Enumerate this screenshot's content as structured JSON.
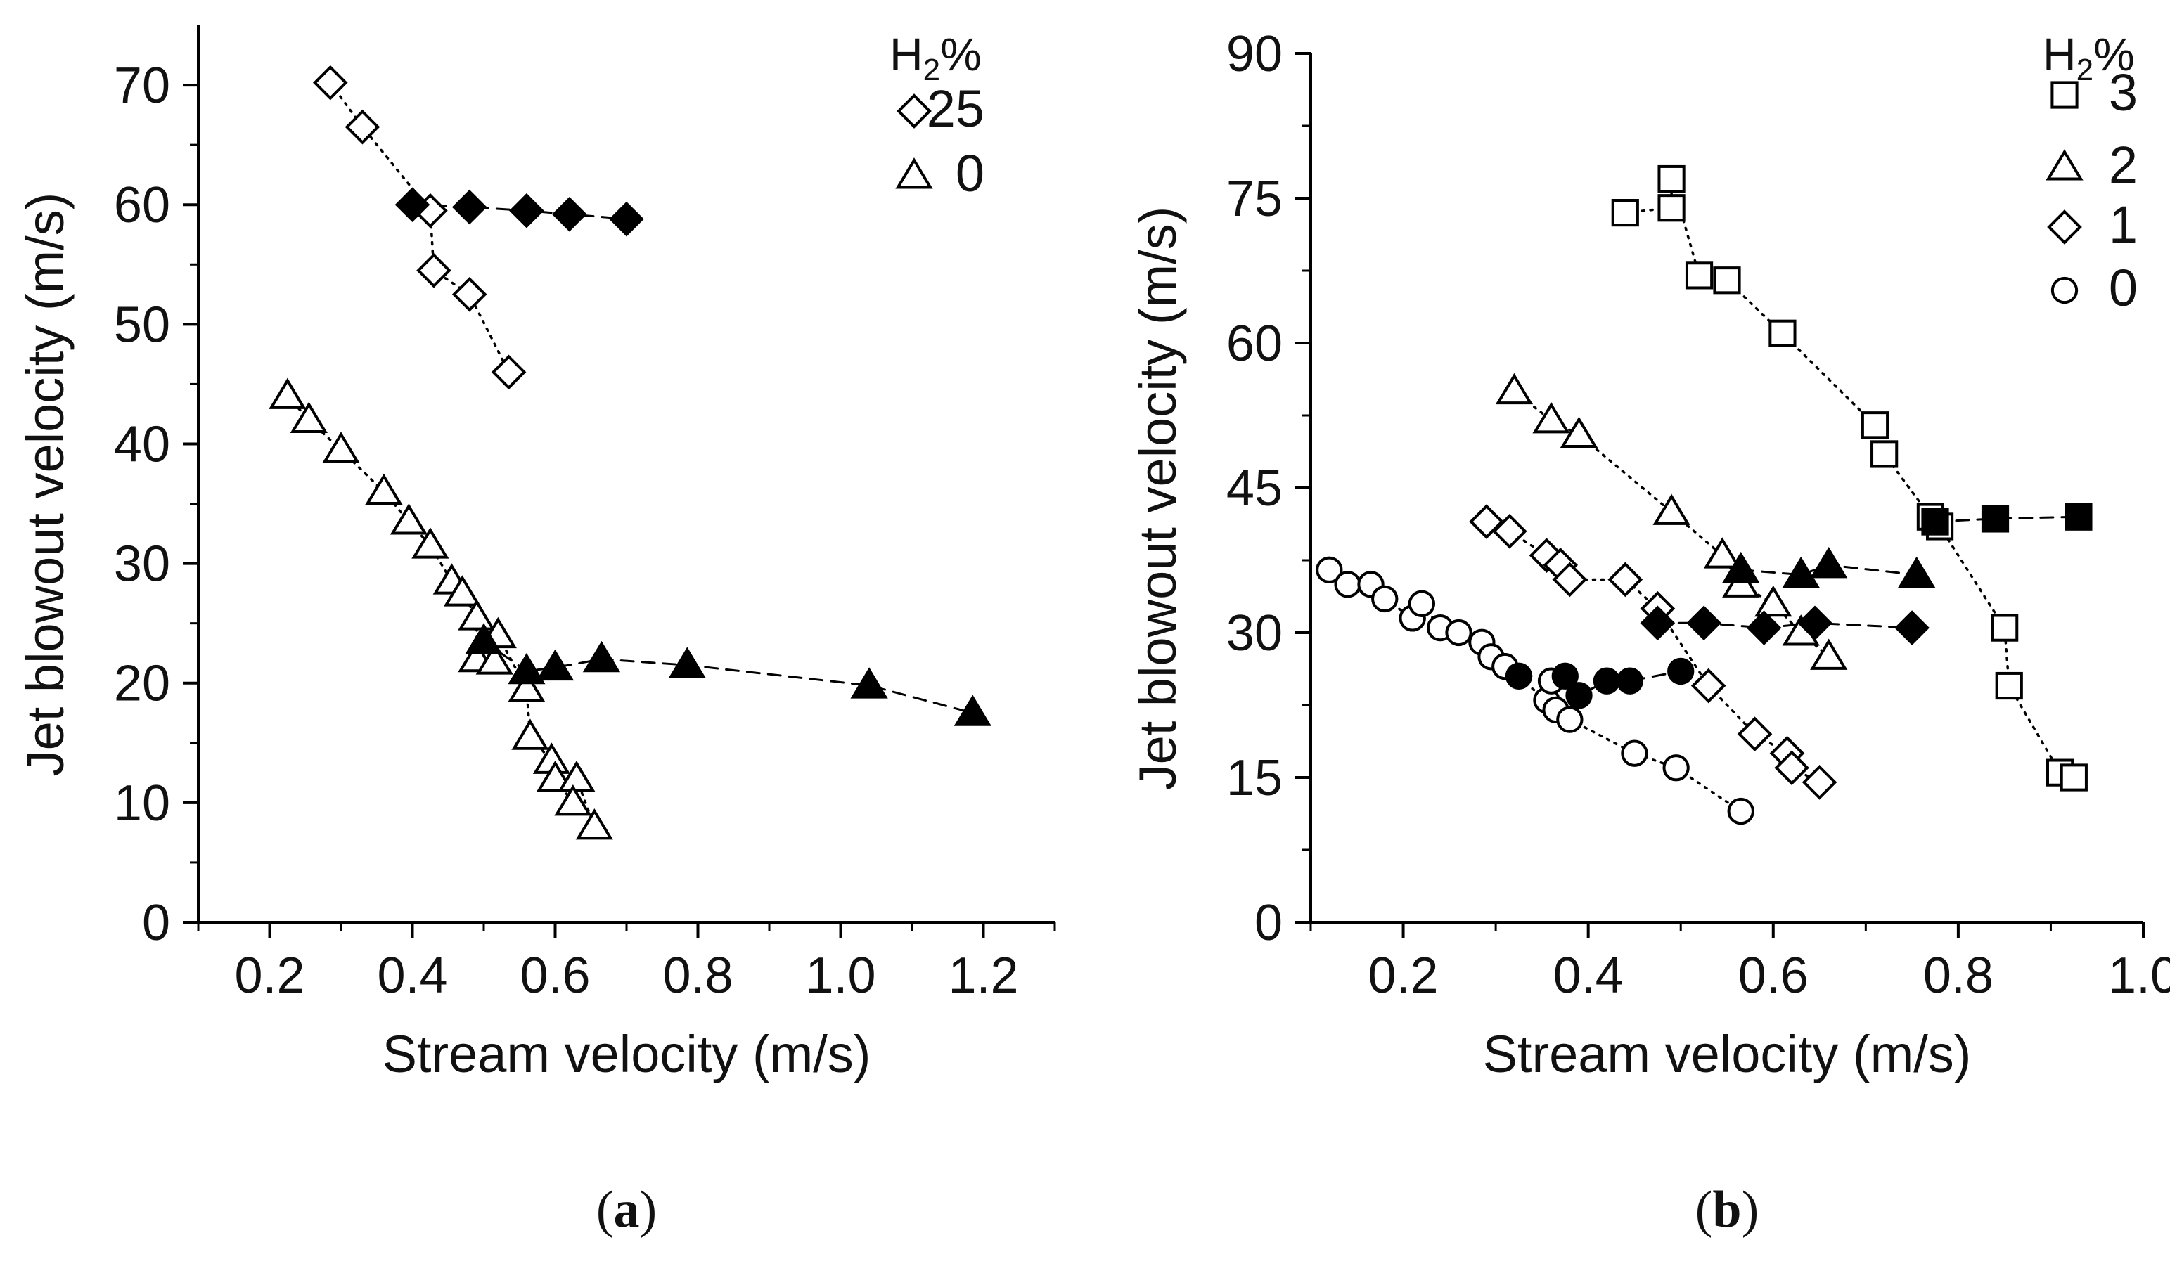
{
  "chart_data": [
    {
      "type": "scatter",
      "panel_label": "(a)",
      "panel_letter": "a",
      "xlabel": "Stream velocity (m/s)",
      "ylabel": "Jet blowout velocity (m/s)",
      "xlim": [
        0.1,
        1.3
      ],
      "ylim": [
        0,
        75
      ],
      "xticks": [
        "0.2",
        "0.4",
        "0.6",
        "0.8",
        "1.0",
        "1.2"
      ],
      "yticks": [
        "0",
        "10",
        "20",
        "30",
        "40",
        "50",
        "60",
        "70"
      ],
      "legend": {
        "title": "H2%",
        "title_main": "H",
        "title_sub": "2",
        "title_suffix": "%",
        "position": "top-right",
        "entries": [
          {
            "label": "25",
            "marker": "diamond"
          },
          {
            "label": "0",
            "marker": "triangle"
          }
        ]
      },
      "series": [
        {
          "label": "25",
          "marker": "diamond",
          "filled": false,
          "line": "dotted",
          "points": [
            [
              0.285,
              70.2
            ],
            [
              0.33,
              66.5
            ],
            [
              0.425,
              59.5
            ],
            [
              0.43,
              54.5
            ],
            [
              0.48,
              52.5
            ],
            [
              0.535,
              46.0
            ]
          ]
        },
        {
          "label": "25",
          "marker": "diamond",
          "filled": true,
          "line": "dashed",
          "points": [
            [
              0.4,
              60.0
            ],
            [
              0.48,
              59.8
            ],
            [
              0.56,
              59.5
            ],
            [
              0.62,
              59.2
            ],
            [
              0.7,
              58.8
            ]
          ]
        },
        {
          "label": "0",
          "marker": "triangle",
          "filled": false,
          "line": "dotted",
          "points": [
            [
              0.225,
              44.0
            ],
            [
              0.255,
              42.0
            ],
            [
              0.3,
              39.5
            ],
            [
              0.36,
              36.0
            ],
            [
              0.395,
              33.5
            ],
            [
              0.425,
              31.5
            ],
            [
              0.455,
              28.5
            ],
            [
              0.47,
              27.5
            ],
            [
              0.49,
              25.5
            ],
            [
              0.52,
              24.0
            ],
            [
              0.49,
              22.0
            ],
            [
              0.515,
              21.8
            ],
            [
              0.56,
              19.5
            ],
            [
              0.565,
              15.5
            ],
            [
              0.595,
              13.5
            ],
            [
              0.6,
              12.0
            ],
            [
              0.63,
              12.0
            ],
            [
              0.625,
              10.0
            ],
            [
              0.655,
              8.0
            ]
          ]
        },
        {
          "label": "0",
          "marker": "triangle",
          "filled": true,
          "line": "dashed",
          "points": [
            [
              0.5,
              23.5
            ],
            [
              0.56,
              21.0
            ],
            [
              0.6,
              21.3
            ],
            [
              0.665,
              22.0
            ],
            [
              0.785,
              21.5
            ],
            [
              1.04,
              19.8
            ],
            [
              1.185,
              17.5
            ]
          ]
        }
      ]
    },
    {
      "type": "scatter",
      "panel_label": "(b)",
      "panel_letter": "b",
      "xlabel": "Stream velocity (m/s)",
      "ylabel": "Jet blowout velocity (m/s)",
      "xlim": [
        0.1,
        1.0
      ],
      "ylim": [
        0,
        90
      ],
      "xticks": [
        "0.2",
        "0.4",
        "0.6",
        "0.8",
        "1.0"
      ],
      "yticks": [
        "0",
        "15",
        "30",
        "45",
        "60",
        "75",
        "90"
      ],
      "legend": {
        "title": "H2%",
        "title_main": "H",
        "title_sub": "2",
        "title_suffix": "%",
        "position": "top-right",
        "entries": [
          {
            "label": "3",
            "marker": "square"
          },
          {
            "label": "2",
            "marker": "triangle"
          },
          {
            "label": "1",
            "marker": "diamond"
          },
          {
            "label": "0",
            "marker": "circle"
          }
        ]
      },
      "series": [
        {
          "label": "3",
          "marker": "square",
          "filled": false,
          "line": "dotted",
          "points": [
            [
              0.44,
              73.5
            ],
            [
              0.49,
              74.0
            ],
            [
              0.49,
              77.0
            ],
            [
              0.52,
              67.0
            ],
            [
              0.55,
              66.5
            ],
            [
              0.61,
              61.0
            ],
            [
              0.71,
              51.5
            ],
            [
              0.72,
              48.5
            ],
            [
              0.77,
              42.0
            ],
            [
              0.78,
              41.0
            ],
            [
              0.85,
              30.5
            ],
            [
              0.855,
              24.5
            ],
            [
              0.91,
              15.5
            ],
            [
              0.925,
              15.0
            ]
          ]
        },
        {
          "label": "3",
          "marker": "square",
          "filled": true,
          "line": "dashed",
          "points": [
            [
              0.775,
              41.5
            ],
            [
              0.84,
              41.8
            ],
            [
              0.93,
              42.0
            ]
          ]
        },
        {
          "label": "2",
          "marker": "triangle",
          "filled": false,
          "line": "dotted",
          "points": [
            [
              0.32,
              55.0
            ],
            [
              0.36,
              52.0
            ],
            [
              0.39,
              50.5
            ],
            [
              0.49,
              42.5
            ],
            [
              0.545,
              38.0
            ],
            [
              0.565,
              35.0
            ],
            [
              0.6,
              33.0
            ],
            [
              0.63,
              30.0
            ],
            [
              0.66,
              27.5
            ]
          ]
        },
        {
          "label": "2",
          "marker": "triangle",
          "filled": true,
          "line": "dashed",
          "points": [
            [
              0.565,
              36.5
            ],
            [
              0.63,
              36.0
            ],
            [
              0.66,
              37.0
            ],
            [
              0.755,
              36.0
            ]
          ]
        },
        {
          "label": "1",
          "marker": "diamond",
          "filled": false,
          "line": "dotted",
          "points": [
            [
              0.29,
              41.5
            ],
            [
              0.315,
              40.5
            ],
            [
              0.355,
              38.0
            ],
            [
              0.37,
              37.0
            ],
            [
              0.38,
              35.5
            ],
            [
              0.44,
              35.5
            ],
            [
              0.475,
              32.5
            ],
            [
              0.53,
              24.5
            ],
            [
              0.58,
              19.5
            ],
            [
              0.615,
              17.5
            ],
            [
              0.62,
              16.0
            ],
            [
              0.65,
              14.5
            ]
          ]
        },
        {
          "label": "1",
          "marker": "diamond",
          "filled": true,
          "line": "dashed",
          "points": [
            [
              0.475,
              31.0
            ],
            [
              0.525,
              31.0
            ],
            [
              0.59,
              30.5
            ],
            [
              0.645,
              31.0
            ],
            [
              0.75,
              30.5
            ]
          ]
        },
        {
          "label": "0",
          "marker": "circle",
          "filled": false,
          "line": "dotted",
          "points": [
            [
              0.12,
              36.5
            ],
            [
              0.14,
              35.0
            ],
            [
              0.165,
              35.0
            ],
            [
              0.18,
              33.5
            ],
            [
              0.21,
              31.5
            ],
            [
              0.22,
              33.0
            ],
            [
              0.24,
              30.5
            ],
            [
              0.26,
              30.0
            ],
            [
              0.285,
              29.0
            ],
            [
              0.295,
              27.5
            ],
            [
              0.31,
              26.5
            ],
            [
              0.355,
              23.0
            ],
            [
              0.36,
              25.0
            ],
            [
              0.365,
              22.0
            ],
            [
              0.38,
              21.0
            ],
            [
              0.45,
              17.5
            ],
            [
              0.495,
              16.0
            ],
            [
              0.565,
              11.5
            ]
          ]
        },
        {
          "label": "0",
          "marker": "circle",
          "filled": true,
          "line": "dashed",
          "points": [
            [
              0.325,
              25.5
            ],
            [
              0.375,
              25.5
            ],
            [
              0.39,
              23.5
            ],
            [
              0.42,
              25.0
            ],
            [
              0.445,
              25.0
            ],
            [
              0.5,
              26.0
            ]
          ]
        }
      ]
    }
  ]
}
